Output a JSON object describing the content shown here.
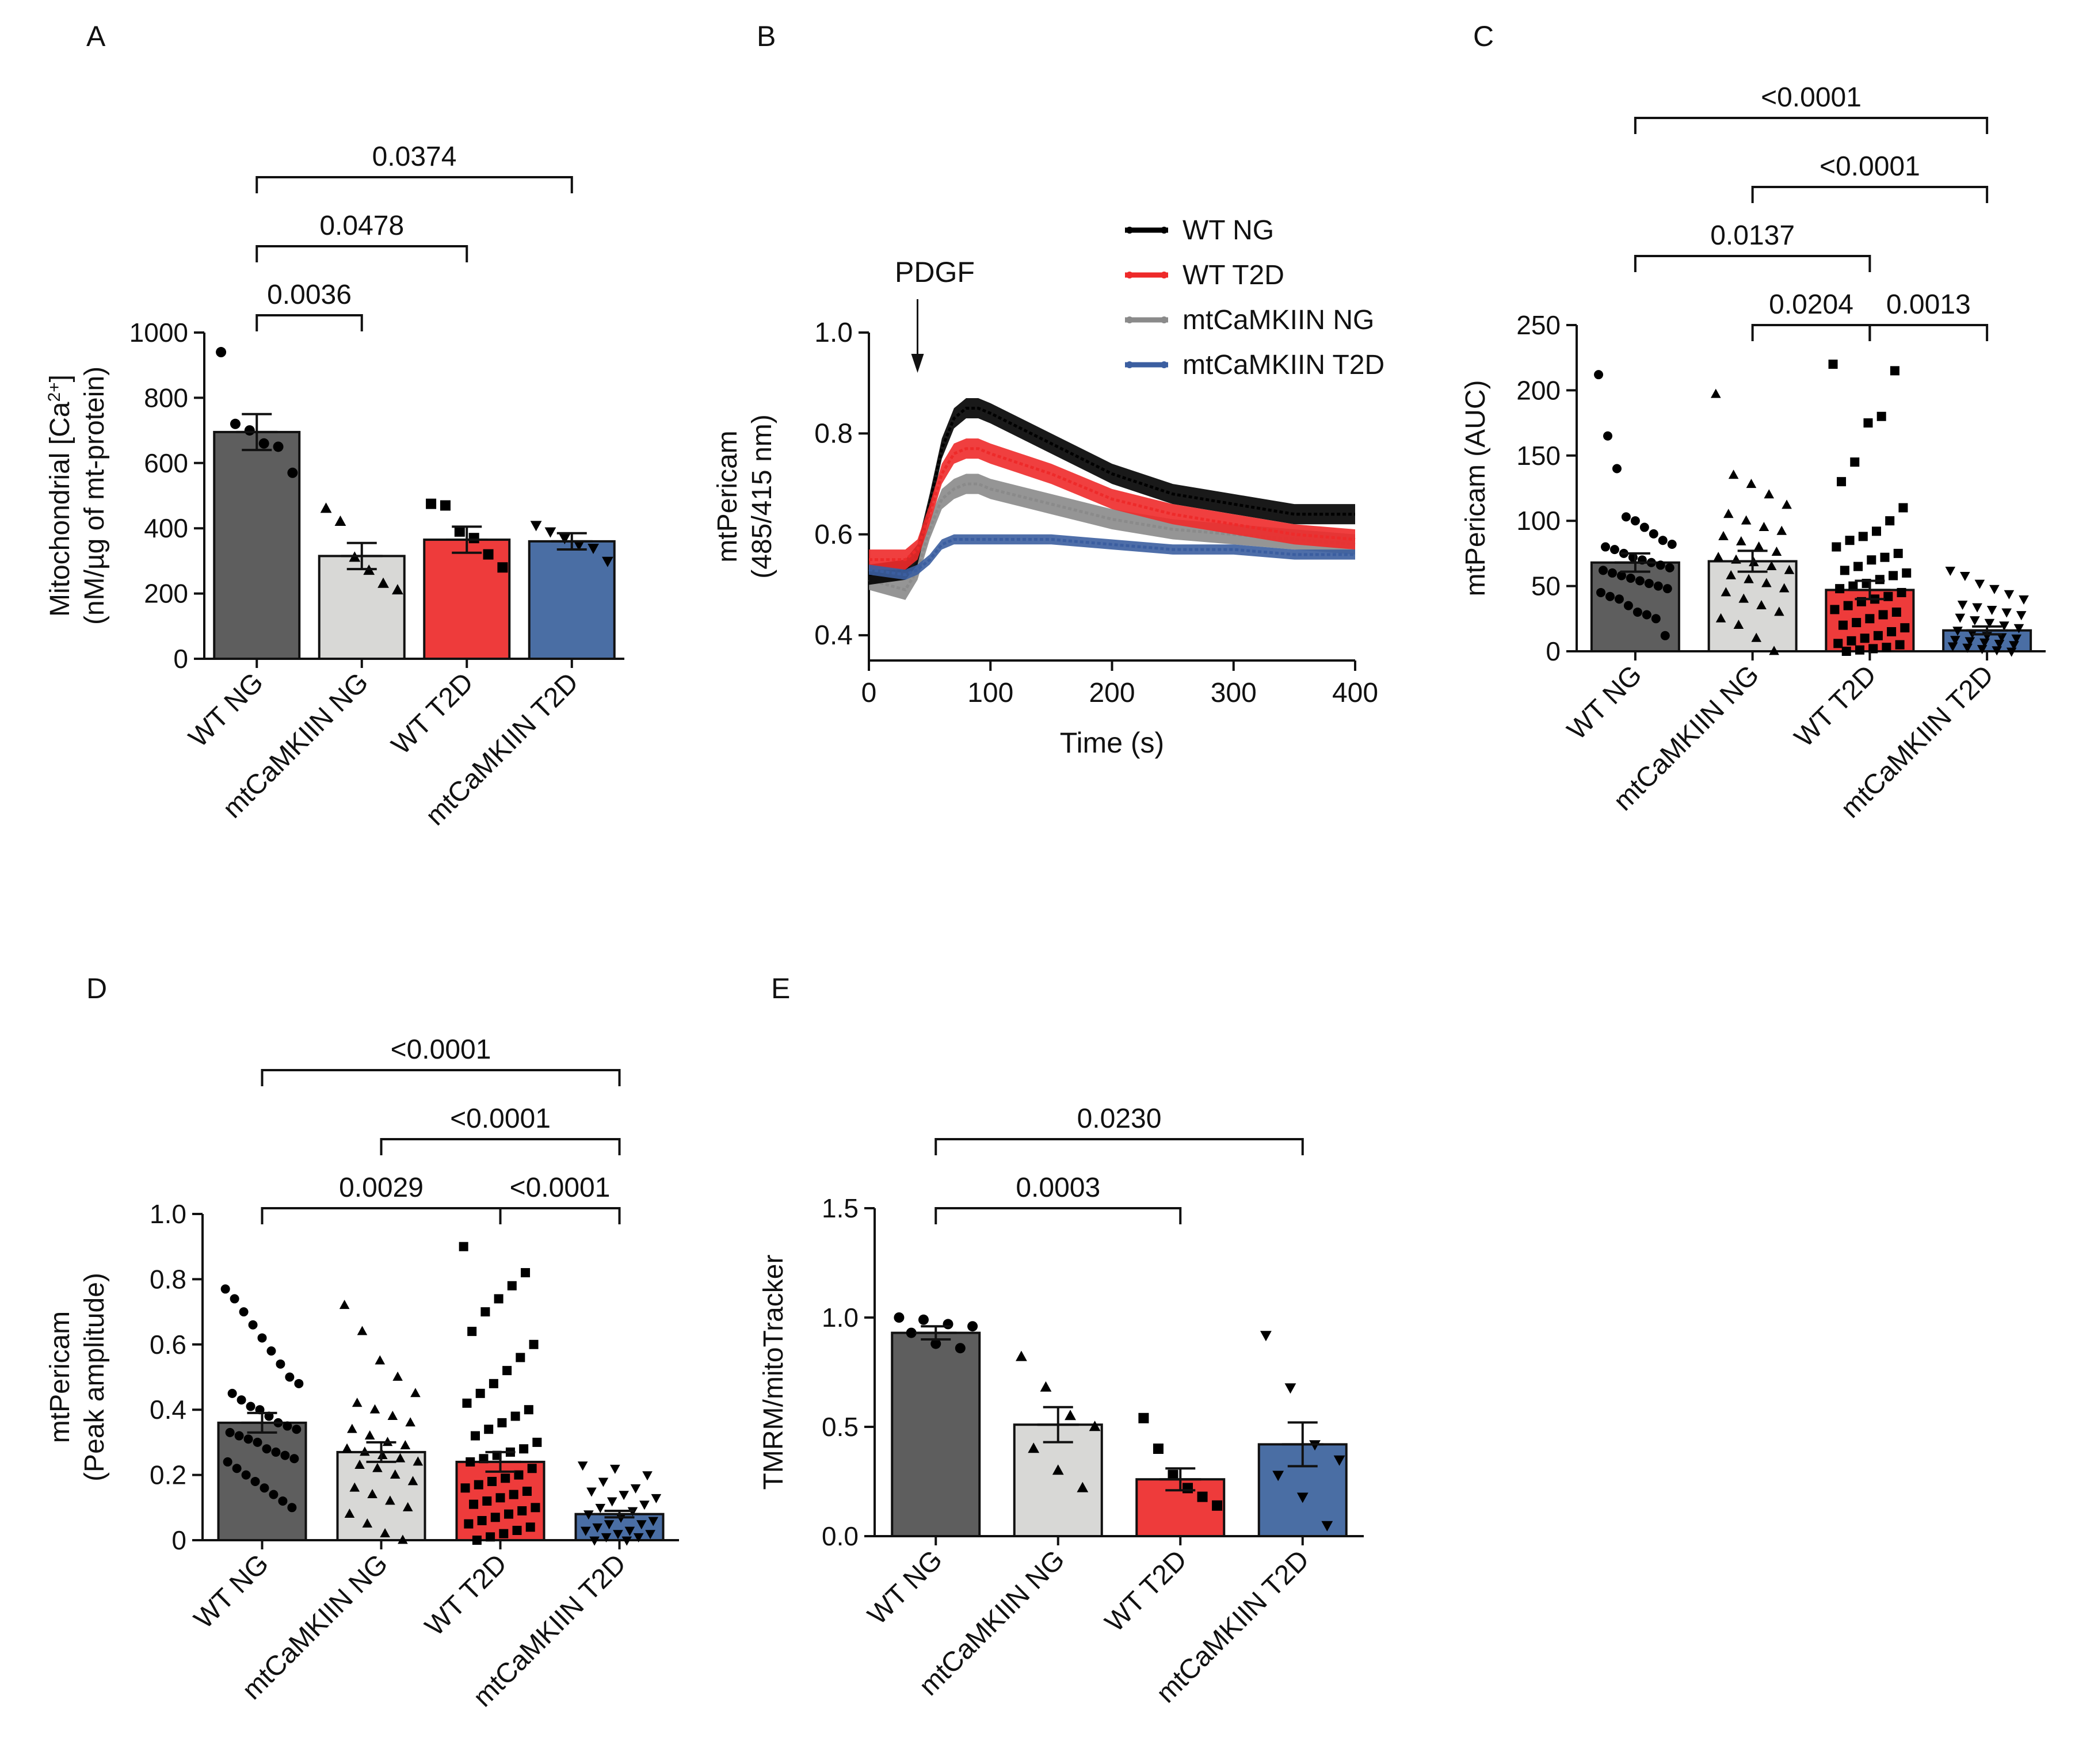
{
  "categories": [
    "WT NG",
    "mtCaMKIIN NG",
    "WT T2D",
    "mtCaMKIIN T2D"
  ],
  "colors": {
    "WT NG": "#5e5e5e",
    "mtCaMKIIN NG": "#d8d8d6",
    "WT T2D": "#ee3b3b",
    "mtCaMKIIN T2D": "#4a6ea4"
  },
  "chart_data": [
    {
      "panel": "A",
      "type": "bar",
      "ylabel_line1": "Mitochondrial [Ca",
      "ylabel_sup": "2+",
      "ylabel_line1_end": "]",
      "ylabel_line2": "(nM/µg of mt-protein)",
      "ylim": [
        0,
        1000
      ],
      "yticks": [
        "0",
        "200",
        "400",
        "600",
        "800",
        "1000"
      ],
      "categories": [
        "WT NG",
        "mtCaMKIIN NG",
        "WT T2D",
        "mtCaMKIIN T2D"
      ],
      "values": [
        695,
        315,
        365,
        360
      ],
      "sem": [
        55,
        40,
        40,
        25
      ],
      "points": [
        [
          940,
          720,
          700,
          660,
          650,
          570
        ],
        [
          460,
          420,
          310,
          270,
          230,
          210
        ],
        [
          475,
          470,
          390,
          370,
          320,
          280
        ],
        [
          410,
          390,
          370,
          350,
          340,
          300
        ]
      ],
      "markers": [
        "circle",
        "triangle",
        "square",
        "triangle-down"
      ],
      "comparisons": [
        {
          "from": 0,
          "to": 1,
          "p": "0.0036"
        },
        {
          "from": 0,
          "to": 2,
          "p": "0.0478"
        },
        {
          "from": 0,
          "to": 3,
          "p": "0.0374"
        }
      ]
    },
    {
      "panel": "B",
      "type": "line",
      "xlabel": "Time (s)",
      "ylabel_line1": "mtPericam",
      "ylabel_line2": "(485/415 nm)",
      "xlim": [
        0,
        400
      ],
      "ylim": [
        0.35,
        1.0
      ],
      "xticks": [
        "0",
        "100",
        "200",
        "300",
        "400"
      ],
      "yticks": [
        "0.4",
        "0.6",
        "0.8",
        "1.0"
      ],
      "annotation": "PDGF",
      "annotation_x": 40,
      "series": [
        {
          "name": "WT NG",
          "color": "#000000",
          "x": [
            0,
            30,
            40,
            50,
            60,
            70,
            80,
            90,
            100,
            150,
            200,
            250,
            300,
            350,
            400
          ],
          "y": [
            0.52,
            0.53,
            0.56,
            0.66,
            0.77,
            0.83,
            0.85,
            0.85,
            0.84,
            0.78,
            0.72,
            0.68,
            0.66,
            0.64,
            0.64
          ],
          "sem": 0.02
        },
        {
          "name": "WT T2D",
          "color": "#ee2a2a",
          "x": [
            0,
            30,
            40,
            50,
            60,
            70,
            80,
            90,
            100,
            150,
            200,
            250,
            300,
            350,
            400
          ],
          "y": [
            0.55,
            0.55,
            0.57,
            0.64,
            0.72,
            0.76,
            0.77,
            0.77,
            0.76,
            0.72,
            0.67,
            0.64,
            0.62,
            0.6,
            0.59
          ],
          "sem": 0.02
        },
        {
          "name": "mtCaMKIIN NG",
          "color": "#8a8a8a",
          "x": [
            0,
            30,
            40,
            50,
            60,
            70,
            80,
            90,
            100,
            150,
            200,
            250,
            300,
            350,
            400
          ],
          "y": [
            0.51,
            0.49,
            0.53,
            0.61,
            0.67,
            0.69,
            0.7,
            0.7,
            0.69,
            0.66,
            0.63,
            0.61,
            0.6,
            0.59,
            0.58
          ],
          "sem": 0.02
        },
        {
          "name": "mtCaMKIIN T2D",
          "color": "#3b5ea0",
          "x": [
            0,
            30,
            40,
            50,
            60,
            70,
            80,
            90,
            100,
            150,
            200,
            250,
            300,
            350,
            400
          ],
          "y": [
            0.53,
            0.52,
            0.53,
            0.55,
            0.58,
            0.59,
            0.59,
            0.59,
            0.59,
            0.59,
            0.58,
            0.57,
            0.57,
            0.56,
            0.56
          ],
          "sem": 0.01
        }
      ],
      "legend_position": "top-right"
    },
    {
      "panel": "C",
      "type": "bar",
      "ylabel_line1": "mtPericam (AUC)",
      "ylim": [
        0,
        250
      ],
      "yticks": [
        "0",
        "50",
        "100",
        "150",
        "200",
        "250"
      ],
      "categories": [
        "WT NG",
        "mtCaMKIIN NG",
        "WT T2D",
        "mtCaMKIIN T2D"
      ],
      "values": [
        68,
        69,
        47,
        16
      ],
      "sem": [
        7,
        8,
        7,
        3
      ],
      "points": [
        [
          212,
          165,
          140,
          103,
          100,
          95,
          90,
          85,
          82,
          80,
          78,
          75,
          72,
          70,
          68,
          66,
          64,
          62,
          60,
          58,
          56,
          54,
          52,
          50,
          48,
          45,
          42,
          40,
          35,
          30,
          28,
          25,
          12
        ],
        [
          197,
          135,
          128,
          120,
          112,
          105,
          100,
          95,
          92,
          88,
          84,
          80,
          76,
          72,
          70,
          68,
          65,
          62,
          58,
          55,
          52,
          48,
          45,
          40,
          35,
          30,
          25,
          20,
          10,
          0
        ],
        [
          220,
          215,
          180,
          175,
          145,
          130,
          110,
          100,
          92,
          88,
          85,
          80,
          75,
          72,
          70,
          65,
          62,
          60,
          58,
          55,
          52,
          50,
          48,
          45,
          42,
          40,
          38,
          35,
          32,
          30,
          28,
          25,
          22,
          20,
          18,
          15,
          12,
          10,
          8,
          6,
          5,
          3,
          2,
          1,
          0
        ],
        [
          62,
          58,
          52,
          48,
          44,
          40,
          36,
          34,
          32,
          30,
          28,
          26,
          24,
          22,
          20,
          18,
          16,
          14,
          12,
          11,
          10,
          9,
          8,
          7,
          6,
          5,
          4,
          3,
          2,
          1,
          0
        ]
      ],
      "markers": [
        "circle",
        "triangle",
        "square",
        "triangle-down"
      ],
      "comparisons": [
        {
          "from": 2,
          "to": 3,
          "p": "0.0013",
          "level": 0
        },
        {
          "from": 1,
          "to": 2,
          "p": "0.0204",
          "level": 0
        },
        {
          "from": 0,
          "to": 2,
          "p": "0.0137",
          "level": 1
        },
        {
          "from": 1,
          "to": 3,
          "p": "<0.0001",
          "level": 2
        },
        {
          "from": 0,
          "to": 3,
          "p": "<0.0001",
          "level": 3
        }
      ]
    },
    {
      "panel": "D",
      "type": "bar",
      "ylabel_line1": "mtPericam",
      "ylabel_line2": "(Peak amplitude)",
      "ylim": [
        0,
        1.0
      ],
      "yticks": [
        "0",
        "0.2",
        "0.4",
        "0.6",
        "0.8",
        "1.0"
      ],
      "categories": [
        "WT NG",
        "mtCaMKIIN NG",
        "WT T2D",
        "mtCaMKIIN T2D"
      ],
      "values": [
        0.36,
        0.27,
        0.24,
        0.08
      ],
      "sem": [
        0.03,
        0.03,
        0.03,
        0.01
      ],
      "points": [
        [
          0.77,
          0.74,
          0.7,
          0.66,
          0.62,
          0.58,
          0.54,
          0.5,
          0.48,
          0.45,
          0.43,
          0.41,
          0.4,
          0.38,
          0.36,
          0.35,
          0.34,
          0.33,
          0.32,
          0.31,
          0.3,
          0.28,
          0.27,
          0.26,
          0.25,
          0.24,
          0.22,
          0.2,
          0.18,
          0.16,
          0.14,
          0.12,
          0.1
        ],
        [
          0.72,
          0.64,
          0.55,
          0.5,
          0.45,
          0.42,
          0.4,
          0.38,
          0.36,
          0.34,
          0.32,
          0.3,
          0.29,
          0.28,
          0.27,
          0.26,
          0.25,
          0.24,
          0.23,
          0.22,
          0.2,
          0.18,
          0.16,
          0.14,
          0.12,
          0.1,
          0.08,
          0.05,
          0.02,
          0.0
        ],
        [
          0.9,
          0.82,
          0.78,
          0.74,
          0.7,
          0.64,
          0.6,
          0.56,
          0.52,
          0.48,
          0.45,
          0.42,
          0.4,
          0.38,
          0.36,
          0.34,
          0.32,
          0.3,
          0.28,
          0.27,
          0.26,
          0.25,
          0.24,
          0.22,
          0.2,
          0.19,
          0.18,
          0.17,
          0.16,
          0.15,
          0.14,
          0.13,
          0.12,
          0.11,
          0.1,
          0.09,
          0.08,
          0.07,
          0.06,
          0.05,
          0.04,
          0.03,
          0.02,
          0.01,
          0.0
        ],
        [
          0.23,
          0.22,
          0.2,
          0.18,
          0.16,
          0.15,
          0.14,
          0.13,
          0.12,
          0.11,
          0.1,
          0.09,
          0.08,
          0.07,
          0.06,
          0.05,
          0.05,
          0.04,
          0.03,
          0.03,
          0.02,
          0.02,
          0.01,
          0.01,
          0.0,
          0.0
        ]
      ],
      "markers": [
        "circle",
        "triangle",
        "square",
        "triangle-down"
      ],
      "comparisons": [
        {
          "from": 0,
          "to": 2,
          "p": "0.0029",
          "level": 0
        },
        {
          "from": 2,
          "to": 3,
          "p": "<0.0001",
          "level": 0
        },
        {
          "from": 1,
          "to": 3,
          "p": "<0.0001",
          "level": 1
        },
        {
          "from": 0,
          "to": 3,
          "p": "<0.0001",
          "level": 2
        }
      ]
    },
    {
      "panel": "E",
      "type": "bar",
      "ylabel_line1": "TMRM/mitoTracker",
      "ylim": [
        0,
        1.5
      ],
      "yticks": [
        "0.0",
        "0.5",
        "1.0",
        "1.5"
      ],
      "categories": [
        "WT NG",
        "mtCaMKIIN NG",
        "WT T2D",
        "mtCaMKIIN T2D"
      ],
      "values": [
        0.93,
        0.51,
        0.26,
        0.42
      ],
      "sem": [
        0.03,
        0.08,
        0.05,
        0.1
      ],
      "points": [
        [
          1.0,
          0.99,
          0.97,
          0.96,
          0.93,
          0.88,
          0.86
        ],
        [
          0.82,
          0.68,
          0.55,
          0.5,
          0.4,
          0.3,
          0.22
        ],
        [
          0.54,
          0.4,
          0.28,
          0.22,
          0.18,
          0.14
        ],
        [
          0.92,
          0.68,
          0.42,
          0.35,
          0.28,
          0.18,
          0.05
        ]
      ],
      "markers": [
        "circle",
        "triangle",
        "square",
        "triangle-down"
      ],
      "comparisons": [
        {
          "from": 0,
          "to": 2,
          "p": "0.0003",
          "level": 0
        },
        {
          "from": 0,
          "to": 3,
          "p": "0.0230",
          "level": 1
        }
      ]
    }
  ]
}
